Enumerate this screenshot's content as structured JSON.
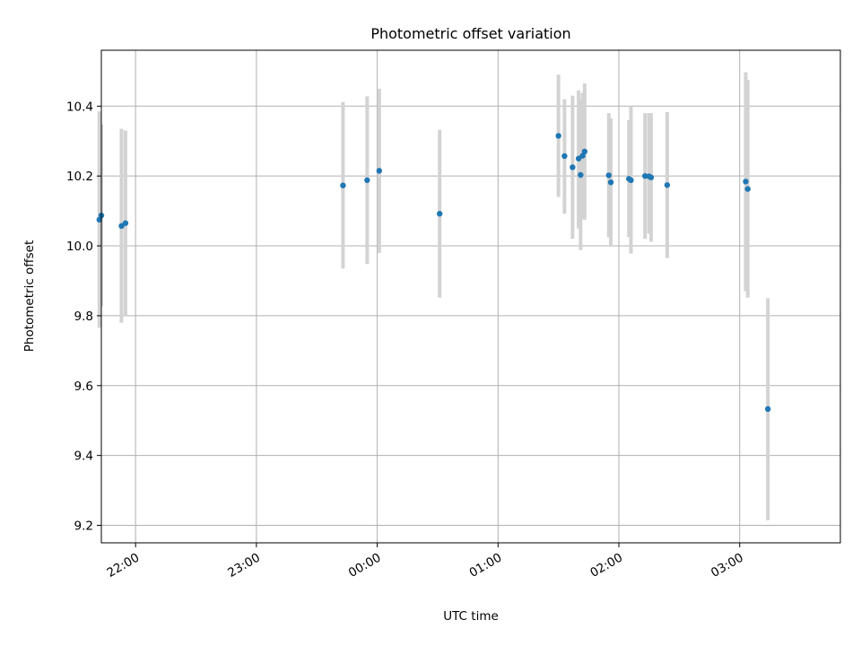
{
  "chart_data": {
    "type": "scatter",
    "title": "Photometric offset variation",
    "xlabel": "UTC time",
    "ylabel": "Photometric offset",
    "xlim": [
      "21:43",
      "03:50"
    ],
    "ylim": [
      9.15,
      10.56
    ],
    "x_ticks": [
      "22:00",
      "23:00",
      "00:00",
      "01:00",
      "02:00",
      "03:00"
    ],
    "y_ticks": [
      "9.2",
      "9.4",
      "9.6",
      "9.8",
      "10.0",
      "10.2",
      "10.4"
    ],
    "grid": true,
    "colors": {
      "points": "#1f77b4",
      "errorbars": "#d3d3d3",
      "grid": "#b0b0b0"
    },
    "points": [
      {
        "t": "21:42",
        "y": 10.075,
        "lo": 9.765,
        "hi": 10.385
      },
      {
        "t": "21:43",
        "y": 10.087,
        "lo": 9.827,
        "hi": 10.347
      },
      {
        "t": "21:53",
        "y": 10.057,
        "lo": 9.78,
        "hi": 10.335
      },
      {
        "t": "21:55",
        "y": 10.065,
        "lo": 9.8,
        "hi": 10.33
      },
      {
        "t": "23:43",
        "y": 10.173,
        "lo": 9.935,
        "hi": 10.412
      },
      {
        "t": "23:55",
        "y": 10.188,
        "lo": 9.948,
        "hi": 10.428
      },
      {
        "t": "00:01",
        "y": 10.215,
        "lo": 9.98,
        "hi": 10.45
      },
      {
        "t": "00:31",
        "y": 10.092,
        "lo": 9.852,
        "hi": 10.332
      },
      {
        "t": "01:30",
        "y": 10.315,
        "lo": 10.14,
        "hi": 10.49
      },
      {
        "t": "01:33",
        "y": 10.257,
        "lo": 10.092,
        "hi": 10.42
      },
      {
        "t": "01:37",
        "y": 10.225,
        "lo": 10.02,
        "hi": 10.43
      },
      {
        "t": "01:40",
        "y": 10.25,
        "lo": 10.05,
        "hi": 10.445
      },
      {
        "t": "01:41",
        "y": 10.203,
        "lo": 9.988,
        "hi": 10.418
      },
      {
        "t": "01:42",
        "y": 10.258,
        "lo": 10.078,
        "hi": 10.438
      },
      {
        "t": "01:43",
        "y": 10.27,
        "lo": 10.075,
        "hi": 10.465
      },
      {
        "t": "01:55",
        "y": 10.202,
        "lo": 10.025,
        "hi": 10.38
      },
      {
        "t": "01:56",
        "y": 10.182,
        "lo": 10.0,
        "hi": 10.365
      },
      {
        "t": "02:05",
        "y": 10.192,
        "lo": 10.025,
        "hi": 10.36
      },
      {
        "t": "02:06",
        "y": 10.188,
        "lo": 9.978,
        "hi": 10.4
      },
      {
        "t": "02:13",
        "y": 10.2,
        "lo": 10.02,
        "hi": 10.38
      },
      {
        "t": "02:15",
        "y": 10.199,
        "lo": 10.035,
        "hi": 10.38
      },
      {
        "t": "02:16",
        "y": 10.196,
        "lo": 10.012,
        "hi": 10.38
      },
      {
        "t": "02:24",
        "y": 10.174,
        "lo": 9.965,
        "hi": 10.383
      },
      {
        "t": "03:03",
        "y": 10.184,
        "lo": 9.87,
        "hi": 10.497
      },
      {
        "t": "03:04",
        "y": 10.163,
        "lo": 9.852,
        "hi": 10.475
      },
      {
        "t": "03:14",
        "y": 9.533,
        "lo": 9.215,
        "hi": 9.85
      }
    ]
  }
}
